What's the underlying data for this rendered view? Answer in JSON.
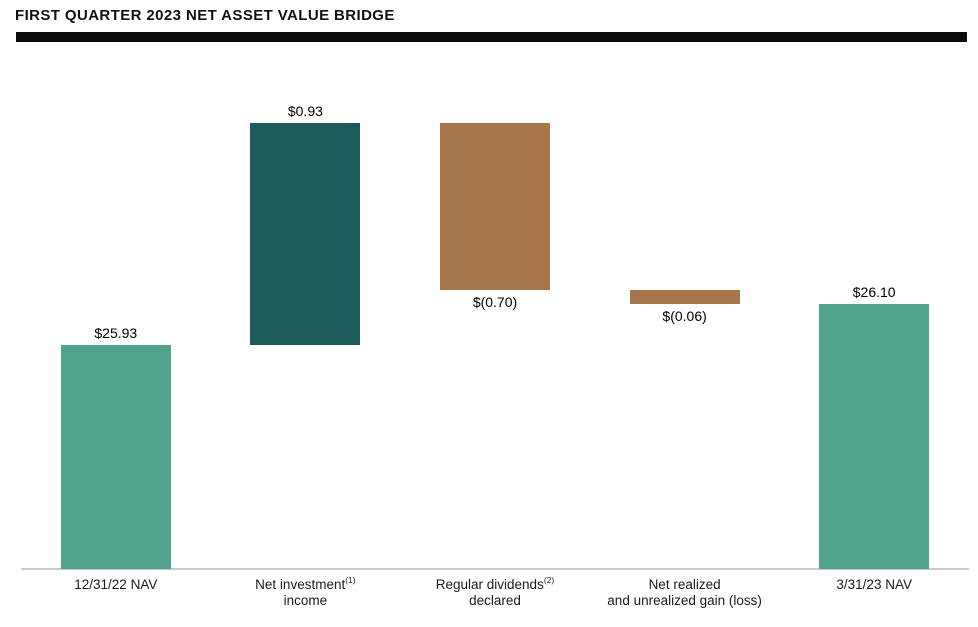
{
  "page": {
    "title": "FIRST QUARTER 2023 NET ASSET VALUE BRIDGE"
  },
  "colors": {
    "teal": "#4FA28B",
    "dark_teal": "#1D5B5A",
    "brown": "#A6774A",
    "axis_line": "#C9C9C9",
    "title_rule": "#0A0A0A"
  },
  "chart_data": {
    "type": "bar",
    "subtype": "waterfall",
    "title": "FIRST QUARTER 2023 NET ASSET VALUE BRIDGE",
    "xlabel": "",
    "ylabel": "",
    "ylim": [
      24.99,
      27.2
    ],
    "grid": false,
    "legend": false,
    "bars": [
      {
        "name": "bar-12-31-22-nav",
        "category_line1": "12/31/22 NAV",
        "category_sup": "",
        "category_line2": "",
        "kind": "total",
        "value": 25.93,
        "label": "$25.93",
        "label_position": "above",
        "color": "#4FA28B"
      },
      {
        "name": "bar-net-investment-income",
        "category_line1": "Net investment",
        "category_sup": "(1)",
        "category_line2": "income",
        "kind": "delta",
        "value": 0.93,
        "label": "$0.93",
        "label_position": "above",
        "color": "#1D5B5A"
      },
      {
        "name": "bar-regular-dividends-declared",
        "category_line1": "Regular dividends",
        "category_sup": "(2)",
        "category_line2": "declared",
        "kind": "delta",
        "value": -0.7,
        "label": "$(0.70)",
        "label_position": "below",
        "color": "#A6774A"
      },
      {
        "name": "bar-net-realized-unrealized-gain-loss",
        "category_line1": "Net realized",
        "category_sup": "",
        "category_line2": "and unrealized gain (loss)",
        "kind": "delta",
        "value": -0.06,
        "label": "$(0.06)",
        "label_position": "below",
        "color": "#A6774A"
      },
      {
        "name": "bar-3-31-23-nav",
        "category_line1": "3/31/23 NAV",
        "category_sup": "",
        "category_line2": "",
        "kind": "total",
        "value": 26.1,
        "label": "$26.10",
        "label_position": "above",
        "color": "#4FA28B"
      }
    ]
  }
}
